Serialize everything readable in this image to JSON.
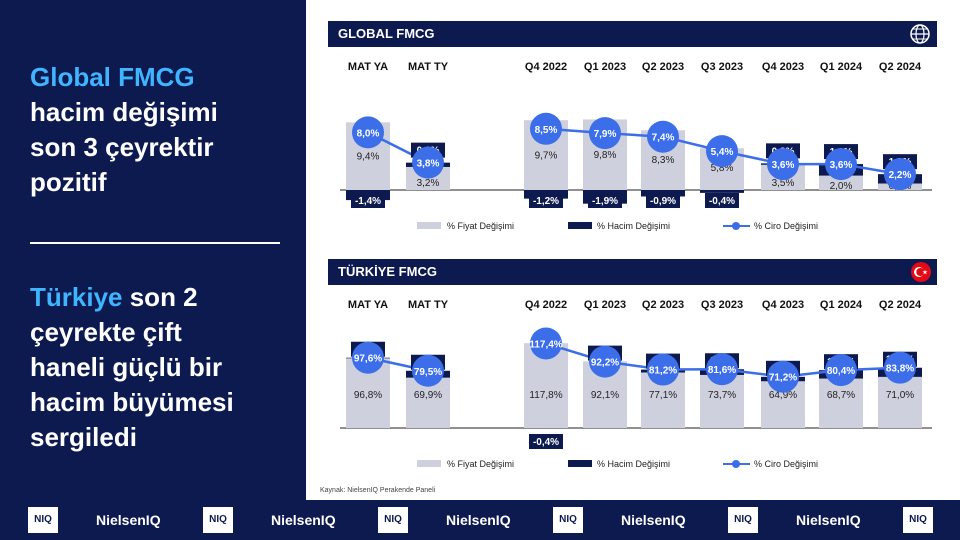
{
  "left": {
    "block1": {
      "accent": "Global FMCG",
      "lines": [
        "hacim değişimi",
        "son 3 çeyrektir",
        "pozitif"
      ]
    },
    "block2": {
      "accent": "Türkiye",
      "first_rest": " son 2",
      "lines": [
        "çeyrekte çift",
        "haneli güçlü bir",
        "hacim büyümesi",
        "sergiledi"
      ]
    }
  },
  "source_note": "Kaynak: NielsenIQ Perakende Paneli",
  "footer": {
    "badge": "NIQ",
    "brand": "NielsenIQ"
  },
  "colors": {
    "navy": "#0d1a4f",
    "accent": "#3fb4ff",
    "price_bar": "#cfd0de",
    "volume_bar": "#0d1a4f",
    "line": "#3b6ee8"
  },
  "chart_data": [
    {
      "type": "bar",
      "title": "GLOBAL FMCG",
      "icon": "globe-icon",
      "categories": [
        "MAT YA",
        "MAT TY",
        "",
        "Q4 2022",
        "Q1 2023",
        "Q2 2023",
        "Q3 2023",
        "Q4 2023",
        "Q1 2024",
        "Q2 2024"
      ],
      "series": [
        {
          "name": "% Fiyat Değişimi",
          "kind": "bar",
          "values": [
            9.4,
            3.2,
            null,
            9.7,
            9.8,
            8.3,
            5.8,
            3.5,
            2.0,
            0.9
          ],
          "labels": [
            "9,4%",
            "3,2%",
            "",
            "9,7%",
            "9,8%",
            "8,3%",
            "5,8%",
            "3,5%",
            "2,0%",
            "0,9%"
          ]
        },
        {
          "name": "% Hacim Değişimi",
          "kind": "bar",
          "values": [
            -1.4,
            0.6,
            null,
            -1.2,
            -1.9,
            -0.9,
            -0.4,
            0.2,
            1.6,
            1.3
          ],
          "labels": [
            "-1,4%",
            "0,6%",
            "",
            "-1,2%",
            "-1,9%",
            "-0,9%",
            "-0,4%",
            "0,2%",
            "1,6%",
            "1,3%"
          ]
        },
        {
          "name": "% Ciro Değişimi",
          "kind": "line",
          "values": [
            8.0,
            3.8,
            null,
            8.5,
            7.9,
            7.4,
            5.4,
            3.6,
            3.6,
            2.2
          ],
          "labels": [
            "8,0%",
            "3,8%",
            "",
            "8,5%",
            "7,9%",
            "7,4%",
            "5,4%",
            "3,6%",
            "3,6%",
            "2,2%"
          ]
        }
      ]
    },
    {
      "type": "bar",
      "title": "TÜRKİYE FMCG",
      "icon": "turkey-flag-icon",
      "categories": [
        "MAT YA",
        "MAT TY",
        "",
        "Q4 2022",
        "Q1 2023",
        "Q2 2023",
        "Q3 2023",
        "Q4 2023",
        "Q1 2024",
        "Q2 2024"
      ],
      "series": [
        {
          "name": "% Fiyat Değişimi",
          "kind": "bar",
          "values": [
            96.8,
            69.9,
            null,
            117.8,
            92.1,
            77.1,
            73.7,
            64.9,
            68.7,
            71.0
          ],
          "labels": [
            "96,8%",
            "69,9%",
            "",
            "117,8%",
            "92,1%",
            "77,1%",
            "73,7%",
            "64,9%",
            "68,7%",
            "71,0%"
          ]
        },
        {
          "name": "% Hacim Değişimi",
          "kind": "bar",
          "values": [
            0.8,
            9.6,
            null,
            -0.4,
            0.1,
            4.0,
            7.9,
            6.2,
            11.6,
            12.7
          ],
          "labels": [
            "0,8%",
            "9,6%",
            "",
            "-0,4%",
            "0,1%",
            "4,0%",
            "7,9%",
            "6,2%",
            "11,6%",
            "12,7%"
          ]
        },
        {
          "name": "% Ciro Değişimi",
          "kind": "line",
          "values": [
            97.6,
            79.5,
            null,
            117.4,
            92.2,
            81.2,
            81.6,
            71.2,
            80.4,
            83.8
          ],
          "labels": [
            "97,6%",
            "79,5%",
            "",
            "117,4%",
            "92,2%",
            "81,2%",
            "81,6%",
            "71,2%",
            "80,4%",
            "83,8%"
          ]
        }
      ]
    }
  ]
}
